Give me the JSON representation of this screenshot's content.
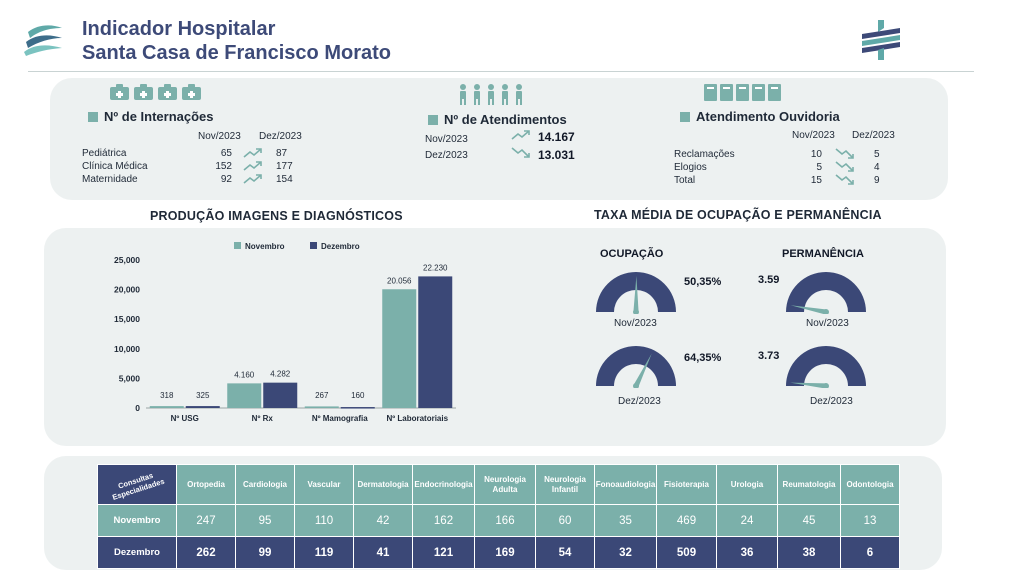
{
  "header": {
    "title_line1": "Indicador Hospitalar",
    "title_line2": "Santa Casa de Francisco Morato"
  },
  "internacoes": {
    "title": "Nº de Internações",
    "col_nov": "Nov/2023",
    "col_dez": "Dez/2023",
    "rows": [
      {
        "label": "Pediátrica",
        "nov": "65",
        "dez": "87",
        "trend": "up"
      },
      {
        "label": "Clínica Médica",
        "nov": "152",
        "dez": "177",
        "trend": "up"
      },
      {
        "label": "Maternidade",
        "nov": "92",
        "dez": "154",
        "trend": "up"
      }
    ]
  },
  "atendimentos": {
    "title": "Nº de Atendimentos",
    "rows": [
      {
        "label": "Nov/2023",
        "value": "14.167",
        "trend": "up"
      },
      {
        "label": "Dez/2023",
        "value": "13.031",
        "trend": "down"
      }
    ]
  },
  "ouvidoria": {
    "title": "Atendimento Ouvidoria",
    "col_nov": "Nov/2023",
    "col_dez": "Dez/2023",
    "rows": [
      {
        "label": "Reclamações",
        "nov": "10",
        "dez": "5",
        "trend": "down"
      },
      {
        "label": "Elogios",
        "nov": "5",
        "dez": "4",
        "trend": "down"
      },
      {
        "label": "Total",
        "nov": "15",
        "dez": "9",
        "trend": "down"
      }
    ]
  },
  "producao": {
    "title": "PRODUÇÃO IMAGENS E DIAGNÓSTICOS"
  },
  "chart_data": {
    "type": "bar",
    "title": "PRODUÇÃO IMAGENS E DIAGNÓSTICOS",
    "categories": [
      "Nº USG",
      "Nº Rx",
      "Nº Mamografia",
      "Nº Laboratoriais"
    ],
    "series": [
      {
        "name": "Novembro",
        "color": "#7bb0aa",
        "values": [
          318,
          4160,
          267,
          20056
        ],
        "labels": [
          "318",
          "4.160",
          "267",
          "20.056"
        ]
      },
      {
        "name": "Dezembro",
        "color": "#3b4877",
        "values": [
          325,
          4282,
          160,
          22230
        ],
        "labels": [
          "325",
          "4.282",
          "160",
          "22.230"
        ]
      }
    ],
    "yticks": [
      0,
      5000,
      10000,
      15000,
      20000,
      25000
    ],
    "ytick_labels": [
      "0",
      "5,000",
      "10,000",
      "15,000",
      "20,000",
      "25,000"
    ],
    "ylim": [
      0,
      25000
    ],
    "legend_position": "top-center"
  },
  "ocupacao": {
    "title": "TAXA MÉDIA DE OCUPAÇÃO E PERMANÊNCIA",
    "ocupacao_label": "OCUPAÇÃO",
    "permanencia_label": "PERMANÊNCIA",
    "gauges": [
      {
        "group": "ocupacao",
        "value_label": "50,35%",
        "period": "Nov/2023",
        "fraction": 0.5035
      },
      {
        "group": "ocupacao",
        "value_label": "64,35%",
        "period": "Dez/2023",
        "fraction": 0.6435
      },
      {
        "group": "permanencia",
        "value_label": "3.59",
        "period": "Nov/2023",
        "fraction": 0.06
      },
      {
        "group": "permanencia",
        "value_label": "3.73",
        "period": "Dez/2023",
        "fraction": 0.03
      }
    ]
  },
  "consultas": {
    "corner_label": "Consultas Especialidades",
    "columns": [
      "Ortopedia",
      "Cardiologia",
      "Vascular",
      "Dermatologia",
      "Endocrinologia",
      "Neurologia Adulta",
      "Neurologia Infantil",
      "Fonoaudiologia",
      "Fisioterapia",
      "Urologia",
      "Reumatologia",
      "Odontologia"
    ],
    "rows": [
      {
        "label": "Novembro",
        "values": [
          "247",
          "95",
          "110",
          "42",
          "162",
          "166",
          "60",
          "35",
          "469",
          "24",
          "45",
          "13"
        ]
      },
      {
        "label": "Dezembro",
        "values": [
          "262",
          "99",
          "119",
          "41",
          "121",
          "169",
          "54",
          "32",
          "509",
          "36",
          "38",
          "6"
        ]
      }
    ]
  },
  "colors": {
    "teal": "#7bb0aa",
    "navy": "#3b4877",
    "title": "#3d4a78",
    "panel": "#edf1f1"
  }
}
